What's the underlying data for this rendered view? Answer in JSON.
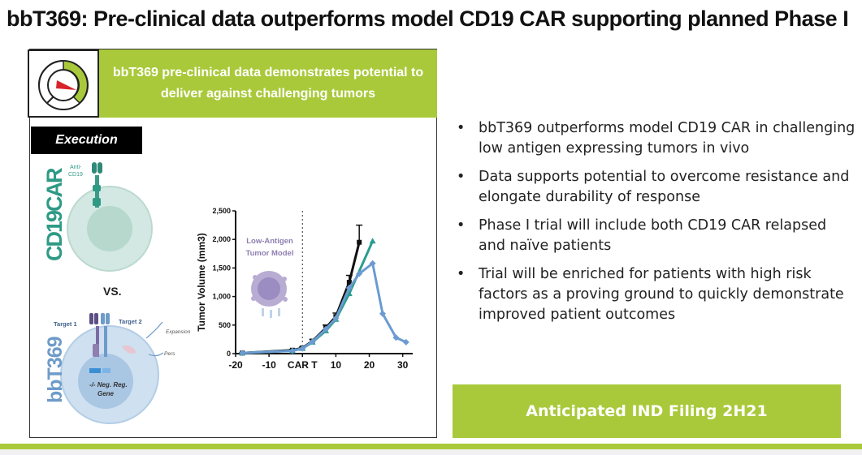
{
  "slide": {
    "title": "bbT369: Pre-clinical data outperforms model CD19 CAR supporting planned Phase I",
    "banner": {
      "line1": "bbT369 pre-clinical data demonstrates potential to",
      "line2": "deliver against challenging tumors"
    },
    "execution_label": "Execution",
    "gauge_icon": "speedometer-gauge-icon",
    "diagram": {
      "top_vertical_label": "CD19CAR",
      "bottom_vertical_label": "bbT369",
      "anti_label": "Anti-",
      "cd19_label": "CD19",
      "vs_label": "VS.",
      "target1": "Target 1",
      "target2": "Target 2",
      "expansion": "Expansion",
      "pers": "Pers",
      "gene_line1": "-/- Neg. Reg.",
      "gene_line2": "Gene"
    },
    "bullets": [
      "bbT369 outperforms model CD19 CAR in challenging low antigen expressing tumors in vivo",
      "Data supports potential to overcome resistance and elongate durability of response",
      "Phase I trial will include both CD19 CAR relapsed and naïve patients",
      "Trial will be enriched for patients with high risk factors as a proving ground to quickly demonstrate improved patient outcomes"
    ],
    "ind_filing": "Anticipated IND Filing 2H21",
    "colors": {
      "accent_green": "#a9c93a",
      "cd19_teal": "#2e9a86",
      "bbt_blue": "#6e9bc9",
      "gauge_red": "#d8232a",
      "chart_black": "#111111",
      "chart_teal": "#2a9d8f",
      "chart_blue": "#6b9bd1",
      "tumor_purple": "#8e7fb0"
    }
  },
  "chart_data": {
    "type": "line",
    "xlabel": "",
    "ylabel": "Tumor Volume (mm3)",
    "xlim": [
      -20,
      33
    ],
    "ylim": [
      0,
      2500
    ],
    "x_ticks": [
      "-20",
      "-10",
      "CAR T",
      "10",
      "20",
      "30"
    ],
    "x_tick_values": [
      -20,
      -10,
      0,
      10,
      20,
      30
    ],
    "y_ticks": [
      "0",
      "500",
      "1,000",
      "1,500",
      "2,000",
      "2,500"
    ],
    "y_tick_values": [
      0,
      500,
      1000,
      1500,
      2000,
      2500
    ],
    "car_t_day": 0,
    "annotation_line1": "Low-Antigen",
    "annotation_line2": "Tumor Model",
    "series": [
      {
        "color": "#111111",
        "marker": "square",
        "error_bars": true,
        "x": [
          -18,
          -3,
          0,
          3,
          7,
          10,
          14,
          17
        ],
        "y": [
          10,
          60,
          100,
          220,
          450,
          650,
          1250,
          1950
        ],
        "err": [
          5,
          15,
          20,
          30,
          50,
          60,
          120,
          300
        ]
      },
      {
        "color": "#2a9d8f",
        "marker": "triangle",
        "error_bars": false,
        "x": [
          -18,
          -3,
          0,
          3,
          7,
          10,
          14,
          21
        ],
        "y": [
          10,
          50,
          90,
          200,
          400,
          600,
          1050,
          1970
        ]
      },
      {
        "color": "#6b9bd1",
        "marker": "diamond",
        "error_bars": false,
        "x": [
          -18,
          -3,
          0,
          3,
          7,
          10,
          14,
          17,
          21,
          24,
          28,
          31
        ],
        "y": [
          10,
          50,
          90,
          210,
          430,
          620,
          1150,
          1400,
          1580,
          700,
          280,
          200
        ]
      }
    ]
  }
}
